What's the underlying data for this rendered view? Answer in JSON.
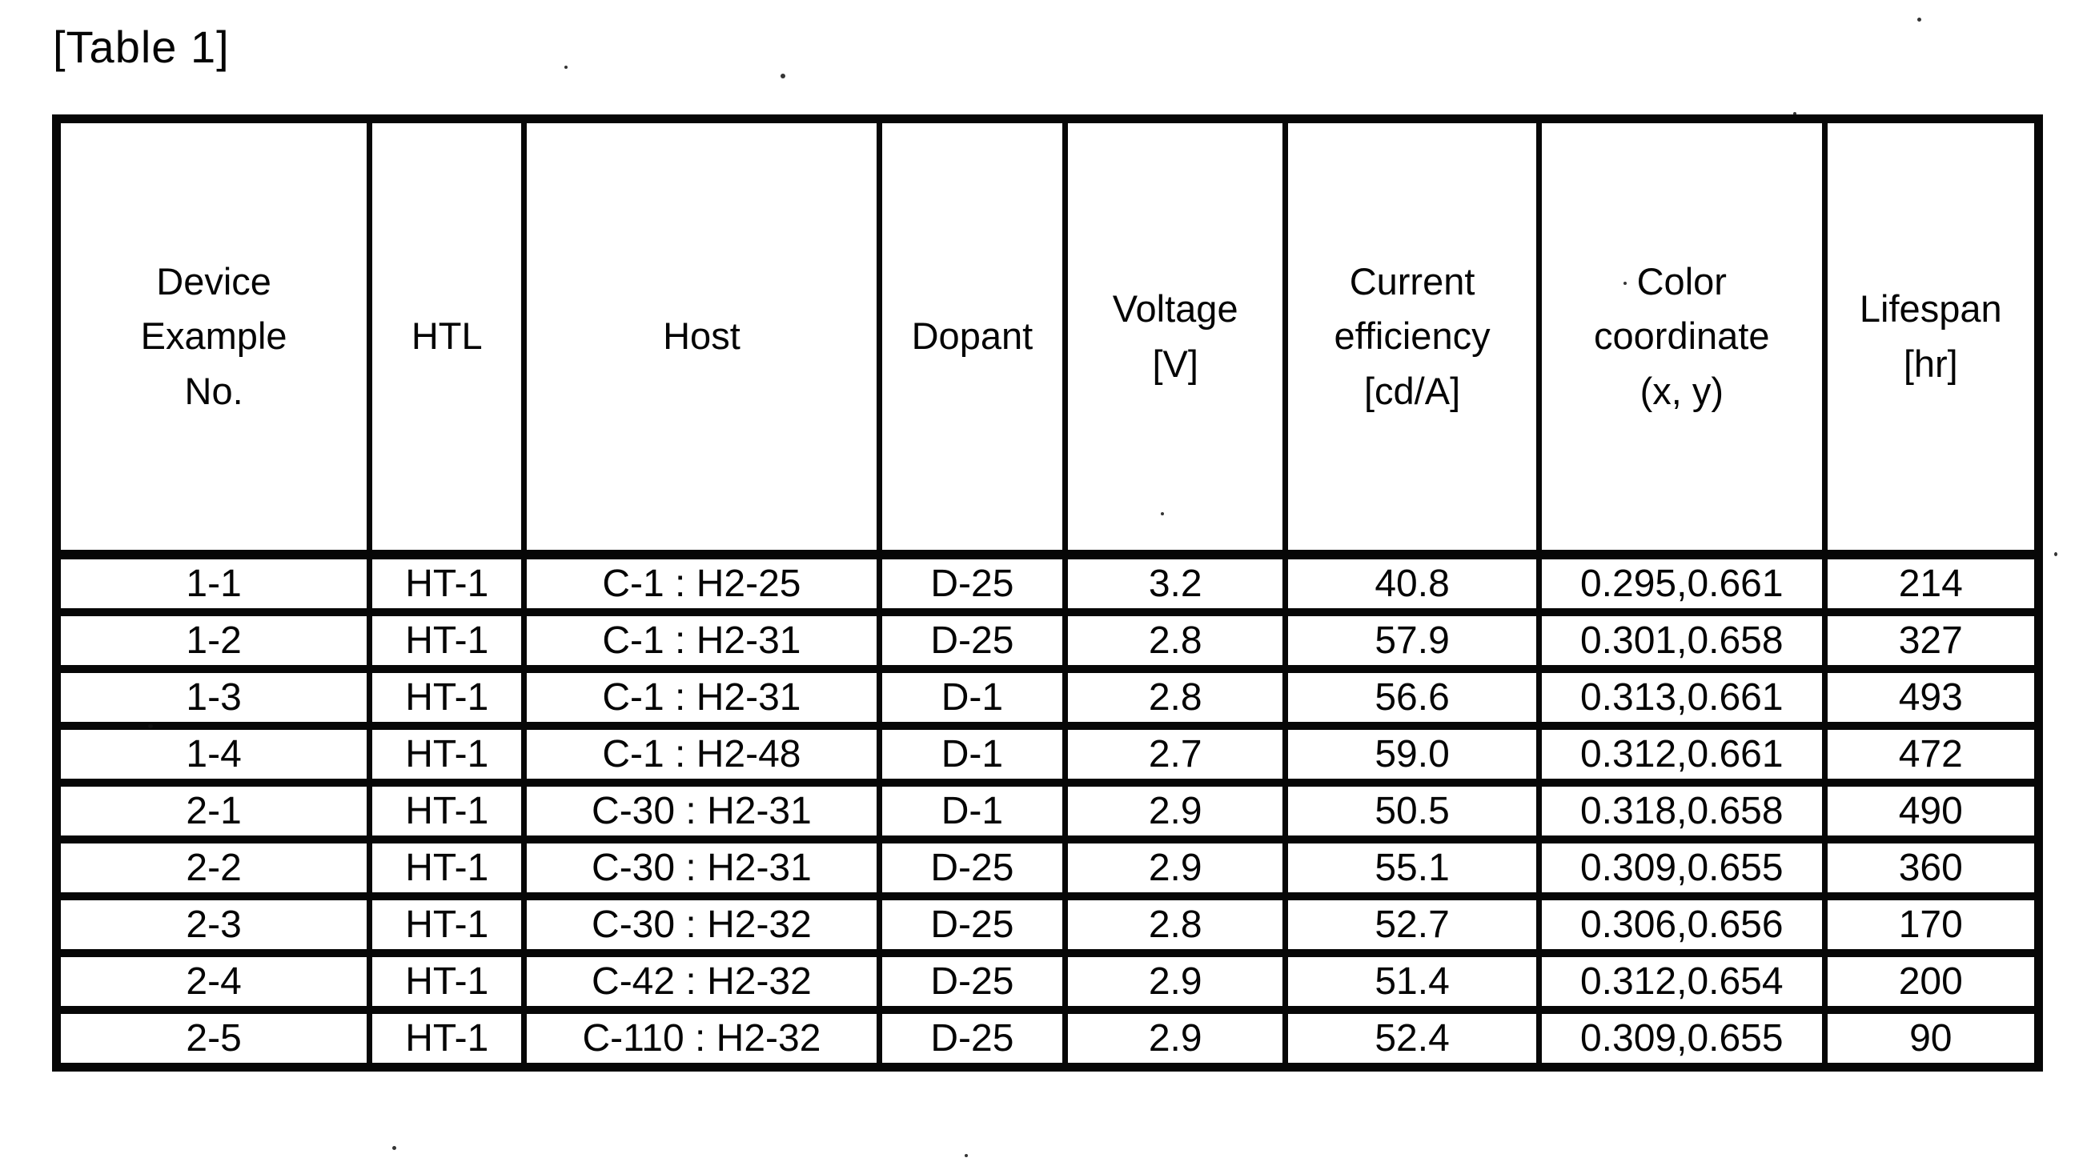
{
  "title": "[Table 1]",
  "table": {
    "columns": [
      {
        "id": "device",
        "label": "Device\nExample\nNo."
      },
      {
        "id": "htl",
        "label": "HTL"
      },
      {
        "id": "host",
        "label": "Host"
      },
      {
        "id": "dopant",
        "label": "Dopant"
      },
      {
        "id": "voltage",
        "label": "Voltage\n[V]"
      },
      {
        "id": "efficiency",
        "label": "Current\nefficiency\n[cd/A]"
      },
      {
        "id": "color",
        "label": "Color\ncoordinate\n(x, y)"
      },
      {
        "id": "lifespan",
        "label": "Lifespan\n[hr]"
      }
    ],
    "rows": [
      [
        "1-1",
        "HT-1",
        "C-1 : H2-25",
        "D-25",
        "3.2",
        "40.8",
        "0.295,0.661",
        "214"
      ],
      [
        "1-2",
        "HT-1",
        "C-1 : H2-31",
        "D-25",
        "2.8",
        "57.9",
        "0.301,0.658",
        "327"
      ],
      [
        "1-3",
        "HT-1",
        "C-1 : H2-31",
        "D-1",
        "2.8",
        "56.6",
        "0.313,0.661",
        "493"
      ],
      [
        "1-4",
        "HT-1",
        "C-1 : H2-48",
        "D-1",
        "2.7",
        "59.0",
        "0.312,0.661",
        "472"
      ],
      [
        "2-1",
        "HT-1",
        "C-30 : H2-31",
        "D-1",
        "2.9",
        "50.5",
        "0.318,0.658",
        "490"
      ],
      [
        "2-2",
        "HT-1",
        "C-30 : H2-31",
        "D-25",
        "2.9",
        "55.1",
        "0.309,0.655",
        "360"
      ],
      [
        "2-3",
        "HT-1",
        "C-30 : H2-32",
        "D-25",
        "2.8",
        "52.7",
        "0.306,0.656",
        "170"
      ],
      [
        "2-4",
        "HT-1",
        "C-42 : H2-32",
        "D-25",
        "2.9",
        "51.4",
        "0.312,0.654",
        "200"
      ],
      [
        "2-5",
        "HT-1",
        "C-110 : H2-32",
        "D-25",
        "2.9",
        "52.4",
        "0.309,0.655",
        "90"
      ]
    ]
  }
}
